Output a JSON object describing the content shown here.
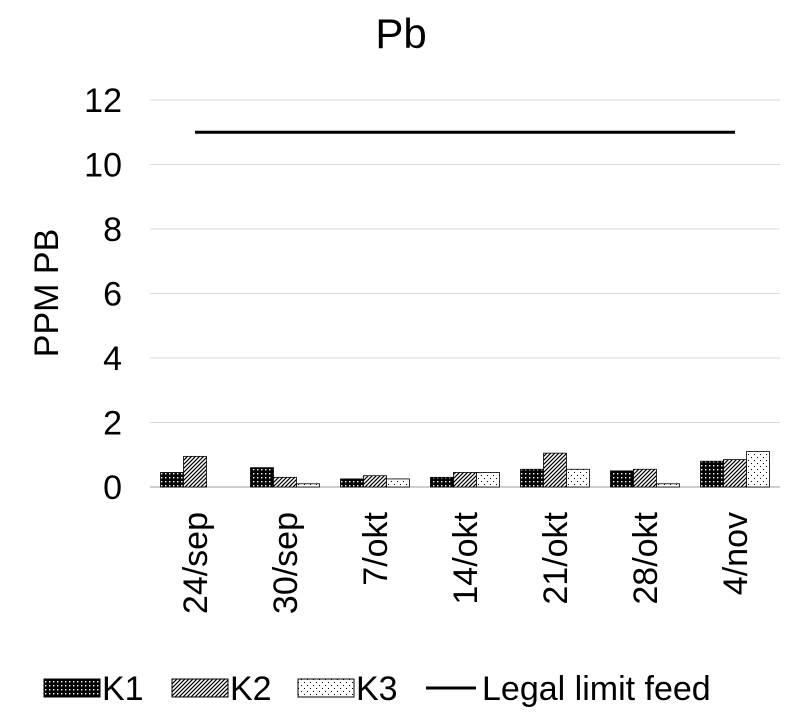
{
  "chart_data": {
    "type": "bar",
    "title": "Pb",
    "xlabel": "",
    "ylabel": "PPM PB",
    "ylim": [
      0,
      12
    ],
    "yticks": [
      "0",
      "2",
      "4",
      "6",
      "8",
      "10",
      "12"
    ],
    "grid": true,
    "legend_position": "bottom",
    "categories": [
      "24/sep",
      "30/sep",
      "7/okt",
      "14/okt",
      "21/okt",
      "28/okt",
      "4/nov"
    ],
    "series": [
      {
        "name": "K1",
        "type": "bar",
        "pattern": "dotted-dark",
        "values": [
          0.45,
          0.6,
          0.25,
          0.3,
          0.55,
          0.5,
          0.8
        ]
      },
      {
        "name": "K2",
        "type": "bar",
        "pattern": "diagonal-hatch",
        "values": [
          0.95,
          0.3,
          0.35,
          0.45,
          1.05,
          0.55,
          0.85
        ]
      },
      {
        "name": "K3",
        "type": "bar",
        "pattern": "dotted-light",
        "values": [
          0.0,
          0.1,
          0.25,
          0.45,
          0.55,
          0.1,
          1.1
        ]
      },
      {
        "name": "Legal limit feed",
        "type": "line",
        "values": [
          11,
          11,
          11,
          11,
          11,
          11,
          11
        ]
      }
    ],
    "colors": {
      "k1_fill": "#000000",
      "k2_fill": "#ffffff",
      "k3_fill": "#ffffff",
      "line": "#000000",
      "grid": "#d9d9d9",
      "axis": "#bfbfbf"
    }
  }
}
